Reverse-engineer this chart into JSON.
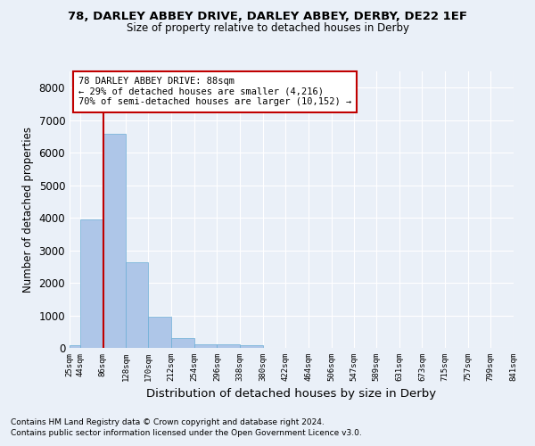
{
  "title1": "78, DARLEY ABBEY DRIVE, DARLEY ABBEY, DERBY, DE22 1EF",
  "title2": "Size of property relative to detached houses in Derby",
  "xlabel": "Distribution of detached houses by size in Derby",
  "ylabel": "Number of detached properties",
  "footnote1": "Contains HM Land Registry data © Crown copyright and database right 2024.",
  "footnote2": "Contains public sector information licensed under the Open Government Licence v3.0.",
  "annotation_title": "78 DARLEY ABBEY DRIVE: 88sqm",
  "annotation_line1": "← 29% of detached houses are smaller (4,216)",
  "annotation_line2": "70% of semi-detached houses are larger (10,152) →",
  "property_size": 88,
  "bar_bins": [
    25,
    44,
    86,
    128,
    170,
    212,
    254,
    296,
    338,
    380,
    422,
    464,
    506,
    547,
    589,
    631,
    673,
    715,
    757,
    799,
    841
  ],
  "bar_heights": [
    75,
    3960,
    6580,
    2620,
    950,
    300,
    120,
    110,
    90,
    0,
    0,
    0,
    0,
    0,
    0,
    0,
    0,
    0,
    0,
    0
  ],
  "bar_color": "#aec6e8",
  "bar_edge_color": "#6baed6",
  "bg_color": "#eaf0f8",
  "grid_color": "#ffffff",
  "vline_color": "#c00000",
  "ylim": [
    0,
    8500
  ],
  "yticks": [
    0,
    1000,
    2000,
    3000,
    4000,
    5000,
    6000,
    7000,
    8000
  ],
  "annotation_box_color": "#ffffff",
  "annotation_box_edge": "#c00000"
}
